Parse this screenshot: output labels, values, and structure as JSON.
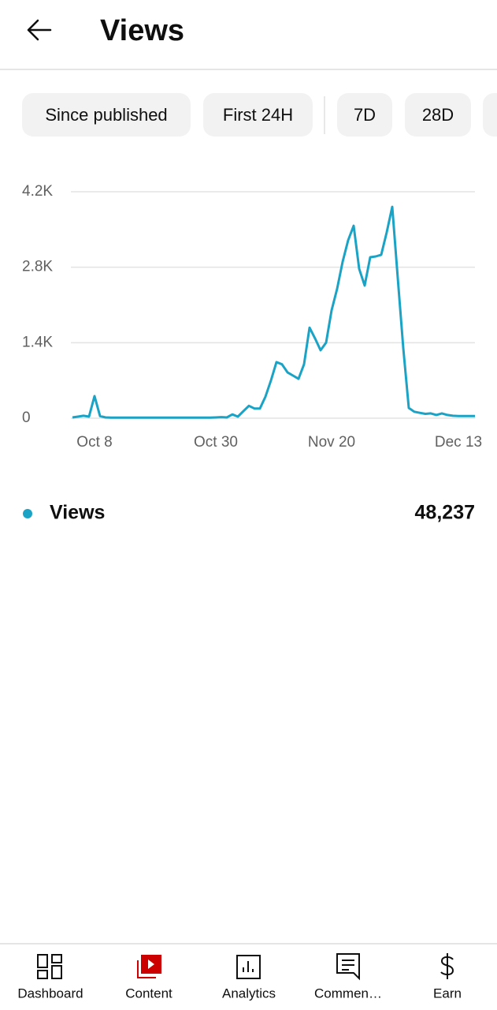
{
  "header": {
    "title": "Views"
  },
  "tabs": [
    "Since published",
    "First 24H",
    "7D",
    "28D"
  ],
  "chart_data": {
    "type": "line",
    "categories": [
      null,
      null,
      null,
      null,
      "Oct 8",
      null,
      null,
      null,
      null,
      null,
      null,
      null,
      null,
      null,
      null,
      null,
      null,
      null,
      null,
      null,
      null,
      null,
      null,
      null,
      null,
      null,
      "Oct 30",
      null,
      null,
      null,
      null,
      null,
      null,
      null,
      null,
      null,
      null,
      null,
      null,
      null,
      null,
      null,
      null,
      null,
      null,
      null,
      null,
      "Nov 20",
      null,
      null,
      null,
      null,
      null,
      null,
      null,
      null,
      null,
      null,
      null,
      null,
      null,
      null,
      null,
      null,
      null,
      null,
      null,
      null,
      null,
      null,
      "Dec 13",
      null,
      null,
      null
    ],
    "series": [
      {
        "name": "Views",
        "color": "#1ba3c6",
        "values": [
          15,
          30,
          45,
          30,
          410,
          40,
          15,
          10,
          10,
          10,
          10,
          10,
          10,
          10,
          10,
          10,
          10,
          10,
          10,
          10,
          10,
          10,
          10,
          10,
          10,
          10,
          15,
          20,
          15,
          70,
          30,
          130,
          230,
          180,
          180,
          400,
          700,
          1040,
          1000,
          850,
          790,
          730,
          1000,
          1680,
          1480,
          1260,
          1400,
          2000,
          2400,
          2900,
          3300,
          3570,
          2770,
          2460,
          2985,
          3000,
          3030,
          3450,
          3920,
          2600,
          1300,
          190,
          120,
          100,
          80,
          90,
          60,
          90,
          60,
          45,
          40,
          40,
          40,
          40
        ]
      }
    ],
    "ylim": [
      0,
      4200
    ],
    "yticks": [
      0,
      {
        "value": 1400,
        "label": "1.4K"
      },
      {
        "value": 2800,
        "label": "2.8K"
      },
      {
        "value": 4200,
        "label": "4.2K"
      }
    ],
    "grid": true
  },
  "summary": {
    "total": "48,237"
  },
  "nav": [
    {
      "label": "Dashboard",
      "active": false
    },
    {
      "label": "Content",
      "active": true
    },
    {
      "label": "Analytics",
      "active": false
    },
    {
      "label": "Commen…",
      "active": false
    },
    {
      "label": "Earn",
      "active": false
    }
  ]
}
